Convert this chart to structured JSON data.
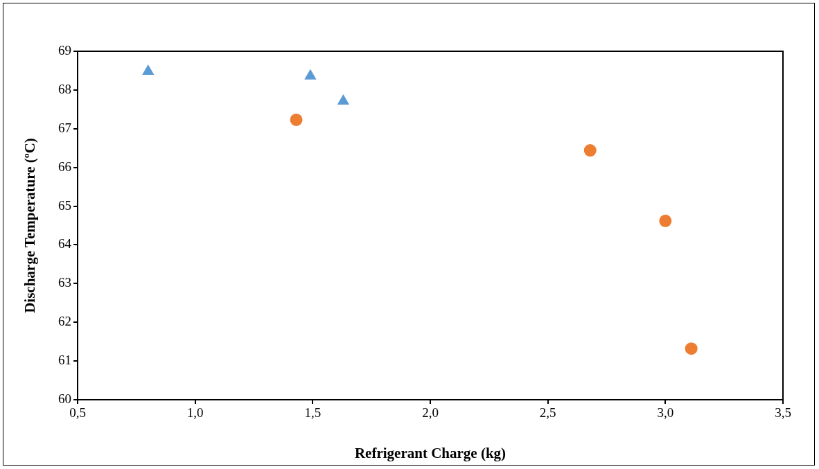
{
  "chart_data": {
    "type": "scatter",
    "xlabel": "Refrigerant Charge (kg)",
    "ylabel": "Discharge Temperature (ºC)",
    "xlim": [
      0.5,
      3.5
    ],
    "xticks": [
      {
        "value": 0.5,
        "label": "0,5"
      },
      {
        "value": 1,
        "label": "1,0"
      },
      {
        "value": 1.5,
        "label": "1,5"
      },
      {
        "value": 2,
        "label": "2,0"
      },
      {
        "value": 2.5,
        "label": "2,5"
      },
      {
        "value": 3,
        "label": "3,0"
      },
      {
        "value": 3.5,
        "label": "3,5"
      }
    ],
    "ylim": [
      60,
      69
    ],
    "yticks": [
      60,
      61,
      62,
      63,
      64,
      65,
      66,
      67,
      68,
      69
    ],
    "grid": false,
    "legend": false,
    "series": [
      {
        "color": "#5b9bd5",
        "marker": "triangle",
        "x": [
          0.8,
          1.49,
          1.63
        ],
        "values": [
          68.48,
          68.36,
          67.71
        ]
      },
      {
        "color": "#ed7d31",
        "marker": "circle",
        "x": [
          1.43,
          2.68,
          3.0,
          3.11
        ],
        "values": [
          67.23,
          66.44,
          64.62,
          61.32
        ]
      }
    ]
  }
}
